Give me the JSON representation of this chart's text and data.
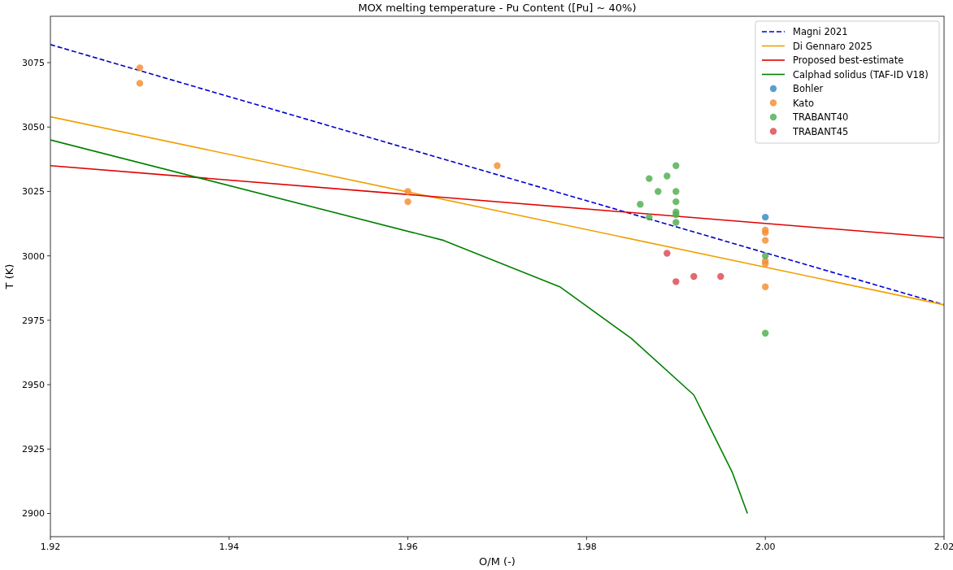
{
  "chart_data": {
    "type": "scatter",
    "title": "MOX melting temperature - Pu Content ([Pu] ~ 40%)",
    "xlabel": "O/M (-)",
    "ylabel": "T (K)",
    "xlim": [
      1.92,
      2.02
    ],
    "xticks": [
      {
        "value": 1.92,
        "label": "1.92"
      },
      {
        "value": 1.94,
        "label": "1.94"
      },
      {
        "value": 1.96,
        "label": "1.96"
      },
      {
        "value": 1.98,
        "label": "1.98"
      },
      {
        "value": 2.0,
        "label": "2.00"
      },
      {
        "value": 2.02,
        "label": "2.02"
      }
    ],
    "ylim": [
      2891,
      3093
    ],
    "yticks": [
      2900,
      2925,
      2950,
      2975,
      3000,
      3025,
      3050,
      3075
    ],
    "grid": false,
    "legend": "top right",
    "series": [
      {
        "name": "Magni 2021",
        "type": "line",
        "line_style": "dashed",
        "color": "#0000cc",
        "x": [
          1.92,
          2.02
        ],
        "values": [
          3082,
          2981
        ]
      },
      {
        "name": "Di Gennaro 2025",
        "type": "line",
        "line_style": "solid",
        "color": "#f0a000",
        "x": [
          1.92,
          2.02
        ],
        "values": [
          3054,
          2981
        ]
      },
      {
        "name": "Proposed best-estimate",
        "type": "line",
        "line_style": "solid",
        "color": "#e00000",
        "x": [
          1.92,
          2.02
        ],
        "values": [
          3035,
          3007
        ]
      },
      {
        "name": "Calphad solidus (TAF-ID V18)",
        "type": "line",
        "line_style": "solid",
        "color": "#008000",
        "x": [
          1.92,
          1.964,
          1.977,
          1.985,
          1.992,
          1.9963,
          1.998
        ],
        "values": [
          3045,
          3006,
          2988,
          2968,
          2946,
          2916,
          2900
        ]
      },
      {
        "name": "Bohler",
        "marker": "circle",
        "color": "#3b8fc4",
        "x": [
          2.0
        ],
        "values": [
          3015
        ]
      },
      {
        "name": "Kato",
        "marker": "circle",
        "color": "#f39237",
        "x": [
          1.93,
          1.93,
          1.96,
          1.96,
          1.97,
          2.0,
          2.0,
          2.0,
          2.0,
          2.0,
          2.0
        ],
        "values": [
          3073,
          3067,
          3025,
          3021,
          3035,
          3010,
          3009,
          3006,
          2998,
          2997,
          2988
        ]
      },
      {
        "name": "TRABANT40",
        "marker": "circle",
        "color": "#55b055",
        "x": [
          1.99,
          1.987,
          1.989,
          1.988,
          1.99,
          1.986,
          1.99,
          1.99,
          1.99,
          1.99,
          1.987,
          2.0,
          2.0
        ],
        "values": [
          3035,
          3030,
          3031,
          3025,
          3025,
          3020,
          3021,
          3017,
          3016,
          3013,
          3015,
          3000,
          2970
        ]
      },
      {
        "name": "TRABANT45",
        "marker": "circle",
        "color": "#dd4f55",
        "x": [
          1.989,
          1.99,
          1.992,
          1.995
        ],
        "values": [
          3001,
          2990,
          2992,
          2992
        ]
      }
    ]
  }
}
